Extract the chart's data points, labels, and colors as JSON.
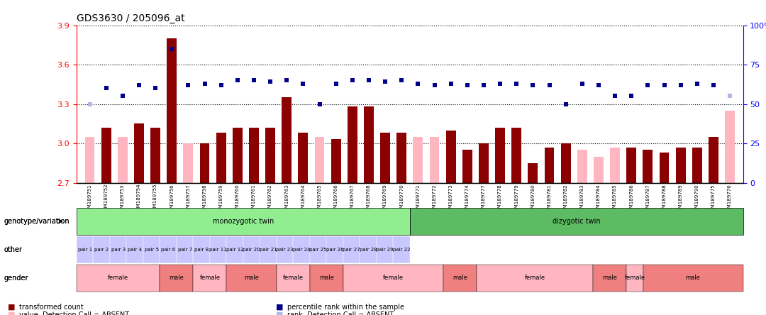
{
  "title": "GDS3630 / 205096_at",
  "samples": [
    "GSM189751",
    "GSM189752",
    "GSM189753",
    "GSM189754",
    "GSM189755",
    "GSM189756",
    "GSM189757",
    "GSM189758",
    "GSM189759",
    "GSM189760",
    "GSM189761",
    "GSM189762",
    "GSM189763",
    "GSM189764",
    "GSM189765",
    "GSM189766",
    "GSM189767",
    "GSM189768",
    "GSM189769",
    "GSM189770",
    "GSM189771",
    "GSM189772",
    "GSM189773",
    "GSM189774",
    "GSM189777",
    "GSM189778",
    "GSM189779",
    "GSM189780",
    "GSM189781",
    "GSM189782",
    "GSM189783",
    "GSM189784",
    "GSM189785",
    "GSM189786",
    "GSM189787",
    "GSM189788",
    "GSM189789",
    "GSM189790",
    "GSM189775",
    "GSM189776"
  ],
  "transformed_count": [
    3.05,
    3.12,
    3.05,
    3.15,
    3.12,
    3.8,
    3.0,
    3.0,
    3.08,
    3.12,
    3.12,
    3.12,
    3.35,
    3.08,
    3.05,
    3.03,
    3.28,
    3.28,
    3.08,
    3.08,
    3.05,
    3.05,
    3.1,
    2.95,
    3.0,
    3.12,
    3.12,
    2.85,
    2.97,
    3.0,
    2.95,
    2.9,
    2.97,
    2.97,
    2.95,
    2.93,
    2.97,
    2.97,
    3.05,
    3.25
  ],
  "absent_flags": [
    true,
    false,
    true,
    false,
    false,
    false,
    true,
    false,
    false,
    false,
    false,
    false,
    false,
    false,
    true,
    false,
    false,
    false,
    false,
    false,
    true,
    true,
    false,
    false,
    false,
    false,
    false,
    false,
    false,
    false,
    true,
    true,
    true,
    false,
    false,
    false,
    false,
    false,
    false,
    true
  ],
  "percentile_rank": [
    50,
    60,
    55,
    62,
    60,
    85,
    62,
    63,
    62,
    65,
    65,
    64,
    65,
    63,
    50,
    63,
    65,
    65,
    64,
    65,
    63,
    62,
    63,
    62,
    62,
    63,
    63,
    62,
    62,
    50,
    63,
    62,
    55,
    55,
    62,
    62,
    62,
    63,
    62,
    55
  ],
  "absent_rank_flags": [
    true,
    false,
    false,
    false,
    false,
    false,
    false,
    false,
    false,
    false,
    false,
    false,
    false,
    false,
    false,
    false,
    false,
    false,
    false,
    false,
    false,
    false,
    false,
    false,
    false,
    false,
    false,
    false,
    false,
    false,
    false,
    false,
    false,
    false,
    false,
    false,
    false,
    false,
    false,
    true
  ],
  "ylim_left": [
    2.7,
    3.9
  ],
  "yticks_left": [
    2.7,
    3.0,
    3.3,
    3.6,
    3.9
  ],
  "ylim_right": [
    0,
    100
  ],
  "yticks_right": [
    0,
    25,
    50,
    75,
    100
  ],
  "bar_color_present": "#8B0000",
  "bar_color_absent": "#FFB6C1",
  "dot_color_present": "#00008B",
  "dot_color_absent": "#B0B8E8",
  "annotation_rows": {
    "genotype_variation": {
      "label": "genotype/variation",
      "groups": [
        {
          "text": "monozygotic twin",
          "start": 0,
          "end": 19,
          "color": "#90EE90"
        },
        {
          "text": "dizygotic twin",
          "start": 20,
          "end": 39,
          "color": "#90EE90"
        }
      ]
    },
    "other": {
      "label": "other",
      "pairs": [
        "pair 1",
        "pair 2",
        "pair 3",
        "pair 4",
        "pair 5",
        "pair 6",
        "pair 7",
        "pair 8",
        "pair 11",
        "pair 12",
        "pair 20",
        "pair 21",
        "pair 23",
        "pair 24",
        "pair 25",
        "pair 26",
        "pair 27",
        "pair 28",
        "pair 29",
        "pair 22"
      ],
      "color": "#C8C8FF"
    },
    "gender": {
      "label": "gender",
      "groups": [
        {
          "text": "female",
          "start": 0,
          "end": 4,
          "color": "#FFB6C1"
        },
        {
          "text": "male",
          "start": 5,
          "end": 6,
          "color": "#F08080"
        },
        {
          "text": "female",
          "start": 7,
          "end": 8,
          "color": "#FFB6C1"
        },
        {
          "text": "male",
          "start": 9,
          "end": 11,
          "color": "#F08080"
        },
        {
          "text": "female",
          "start": 12,
          "end": 13,
          "color": "#FFB6C1"
        },
        {
          "text": "male",
          "start": 14,
          "end": 15,
          "color": "#F08080"
        },
        {
          "text": "female",
          "start": 16,
          "end": 21,
          "color": "#FFB6C1"
        },
        {
          "text": "male",
          "start": 22,
          "end": 23,
          "color": "#F08080"
        },
        {
          "text": "female",
          "start": 24,
          "end": 30,
          "color": "#FFB6C1"
        },
        {
          "text": "male",
          "start": 31,
          "end": 32,
          "color": "#F08080"
        },
        {
          "text": "female",
          "start": 33,
          "end": 33,
          "color": "#FFB6C1"
        },
        {
          "text": "male",
          "start": 34,
          "end": 39,
          "color": "#F08080"
        }
      ]
    }
  }
}
